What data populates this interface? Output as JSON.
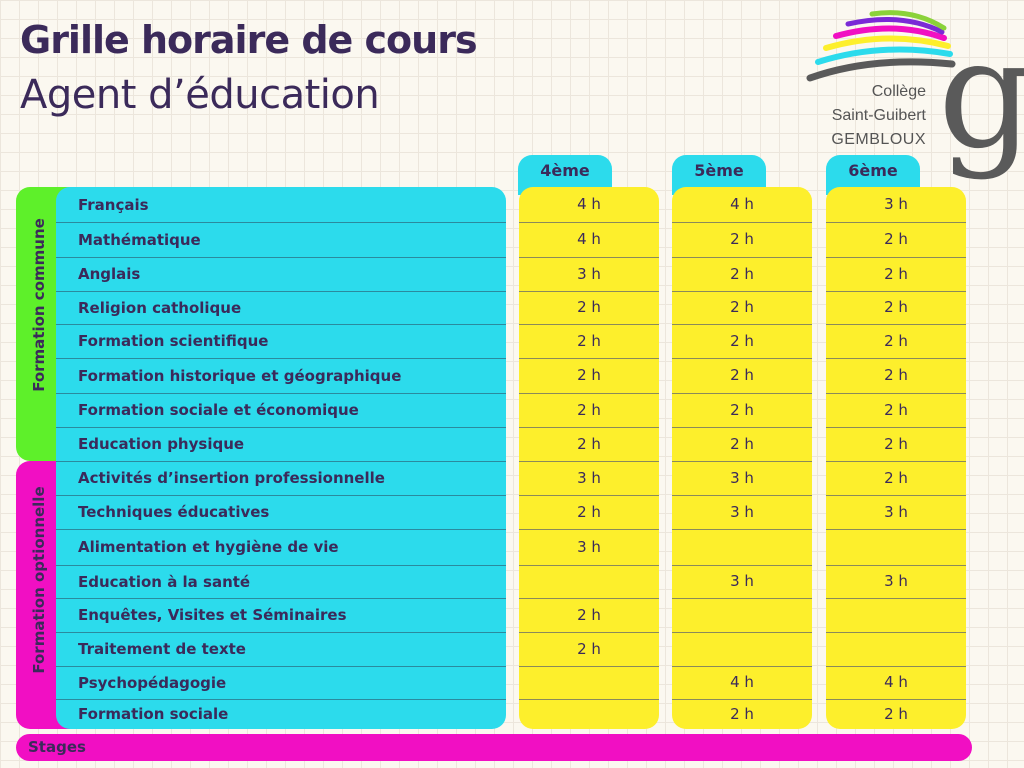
{
  "title": "Grille horaire de cours",
  "subtitle": "Agent d’éducation",
  "logo": {
    "line1": "Collège",
    "line2": "Saint-Guibert",
    "line3": "GEMBLOUX",
    "letter": "g"
  },
  "groups": {
    "commune": "Formation commune",
    "optionnelle": "Formation optionnelle"
  },
  "columns": [
    "4ème",
    "5ème",
    "6ème"
  ],
  "subjects": [
    {
      "name": "Français",
      "hours": [
        "4 h",
        "4 h",
        "3 h"
      ]
    },
    {
      "name": "Mathématique",
      "hours": [
        "4 h",
        "2 h",
        "2 h"
      ]
    },
    {
      "name": "Anglais",
      "hours": [
        "3 h",
        "2 h",
        "2 h"
      ]
    },
    {
      "name": "Religion catholique",
      "hours": [
        "2 h",
        "2 h",
        "2 h"
      ]
    },
    {
      "name": "Formation scientifique",
      "hours": [
        "2 h",
        "2 h",
        "2 h"
      ]
    },
    {
      "name": "Formation historique et géographique",
      "hours": [
        "2 h",
        "2 h",
        "2 h"
      ]
    },
    {
      "name": "Formation sociale et économique",
      "hours": [
        "2 h",
        "2 h",
        "2 h"
      ]
    },
    {
      "name": "Education physique",
      "hours": [
        "2 h",
        "2 h",
        "2 h"
      ]
    },
    {
      "name": "Activités d’insertion professionnelle",
      "hours": [
        "3 h",
        "3 h",
        "2 h"
      ]
    },
    {
      "name": "Techniques éducatives",
      "hours": [
        "2 h",
        "3 h",
        "3 h"
      ]
    },
    {
      "name": "Alimentation et hygiène de vie",
      "hours": [
        "3 h",
        "",
        ""
      ]
    },
    {
      "name": "Education à la santé",
      "hours": [
        "",
        "3 h",
        "3 h"
      ]
    },
    {
      "name": "Enquêtes, Visites et Séminaires",
      "hours": [
        "2 h",
        "",
        ""
      ]
    },
    {
      "name": "Traitement de texte",
      "hours": [
        "2 h",
        "",
        ""
      ]
    },
    {
      "name": "Psychopédagogie",
      "hours": [
        "",
        "4 h",
        "4 h"
      ]
    },
    {
      "name": "Formation sociale",
      "hours": [
        "",
        "2 h",
        "2 h"
      ]
    }
  ],
  "stages": "Stages",
  "colors": {
    "commune": "#5ef02a",
    "optionnelle": "#f10fc3",
    "subjects": "#2cdbec",
    "hours": "#fdef2c",
    "text": "#3b2a5a"
  }
}
